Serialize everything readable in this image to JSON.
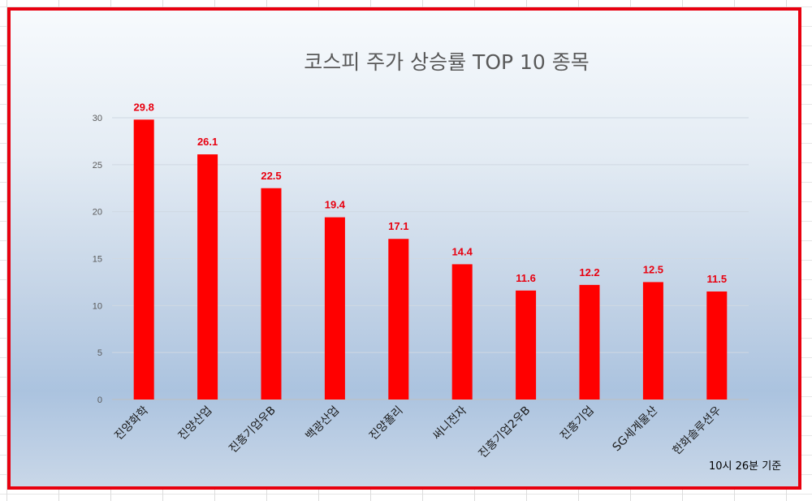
{
  "chart_data": {
    "type": "bar",
    "title": "코스피 주가 상승률 TOP 10 종목",
    "xlabel": "",
    "ylabel": "",
    "categories": [
      "진양화학",
      "진양산업",
      "진흥기업우B",
      "백광산업",
      "진양폴리",
      "써니전자",
      "진흥기업2우B",
      "진흥기업",
      "SG세계물산",
      "한화솔루션우"
    ],
    "values": [
      29.8,
      26.1,
      22.5,
      19.4,
      17.1,
      14.4,
      11.6,
      12.2,
      12.5,
      11.5
    ],
    "ylim": [
      0,
      30
    ],
    "yticks": [
      0,
      5,
      10,
      15,
      20,
      25,
      30
    ],
    "grid": true,
    "bar_color": "#ff0000",
    "label_color": "#e8000f"
  },
  "footnote": "10시 26분 기준",
  "colors": {
    "frame_border": "#e8000f"
  }
}
